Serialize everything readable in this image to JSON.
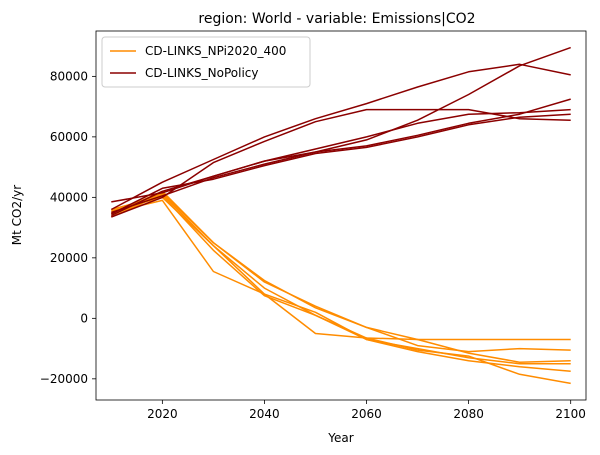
{
  "chart_data": {
    "type": "line",
    "title": "region: World - variable: Emissions|CO2",
    "xlabel": "Year",
    "ylabel": "Mt CO2/yr",
    "xlim": [
      2007,
      2103
    ],
    "ylim": [
      -27000,
      95000
    ],
    "x_ticks": [
      2020,
      2040,
      2060,
      2080,
      2100
    ],
    "y_ticks": [
      -20000,
      0,
      20000,
      40000,
      60000,
      80000
    ],
    "legend_position": "top-left",
    "grid": false,
    "x": [
      2010,
      2020,
      2030,
      2040,
      2050,
      2060,
      2070,
      2080,
      2090,
      2100
    ],
    "series": [
      {
        "name": "CD-LINKS_NPi2020_400",
        "color": "#ff8c00",
        "lines": [
          [
            33500,
            41000,
            24000,
            10000,
            1000,
            -7000,
            -10000,
            -13000,
            -15000,
            -15000
          ],
          [
            35000,
            39000,
            15500,
            8000,
            -5000,
            -6500,
            -7000,
            -7000,
            -7000,
            -7000
          ],
          [
            34500,
            42000,
            25000,
            12500,
            3500,
            -3000,
            -7000,
            -11500,
            -14500,
            -14000
          ],
          [
            36000,
            40500,
            22500,
            7500,
            1000,
            -6500,
            -10500,
            -12500,
            -18500,
            -21500
          ],
          [
            35500,
            40000,
            24000,
            8000,
            2000,
            -7000,
            -11000,
            -14000,
            -16000,
            -17500
          ],
          [
            34000,
            41500,
            25000,
            12000,
            4000,
            -3000,
            -9000,
            -11000,
            -10000,
            -10500
          ]
        ]
      },
      {
        "name": "CD-LINKS_NoPolicy",
        "color": "#8b0000",
        "lines": [
          [
            36000,
            45000,
            52500,
            60000,
            66000,
            71000,
            76500,
            81500,
            84000,
            80500
          ],
          [
            34000,
            42000,
            47000,
            52000,
            55000,
            59000,
            65500,
            74000,
            83500,
            89500
          ],
          [
            38500,
            41500,
            47000,
            52000,
            56000,
            60000,
            64500,
            67500,
            68000,
            69000
          ],
          [
            35000,
            40500,
            46500,
            51000,
            55000,
            57000,
            60500,
            64500,
            67500,
            72500
          ],
          [
            33500,
            40000,
            51500,
            58500,
            65000,
            69000,
            69000,
            69000,
            66000,
            65500
          ],
          [
            34500,
            43000,
            46000,
            50500,
            54500,
            56500,
            60000,
            64000,
            66500,
            67500
          ]
        ]
      }
    ]
  }
}
